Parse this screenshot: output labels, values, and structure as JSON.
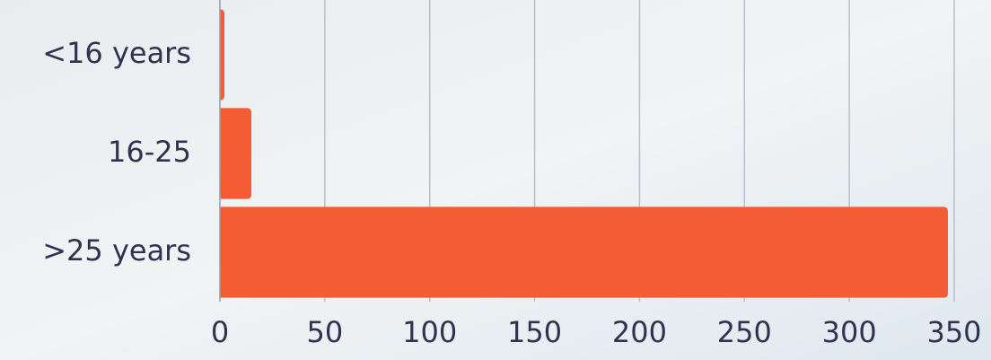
{
  "chart_data": {
    "type": "bar",
    "orientation": "horizontal",
    "categories": [
      "<16 years",
      "16-25",
      ">25 years"
    ],
    "values": [
      1,
      15,
      347
    ],
    "color": "#f45d34",
    "xlim": [
      0,
      350
    ],
    "xticks": [
      0,
      50,
      100,
      150,
      200,
      250,
      300,
      350
    ],
    "grid": true
  }
}
